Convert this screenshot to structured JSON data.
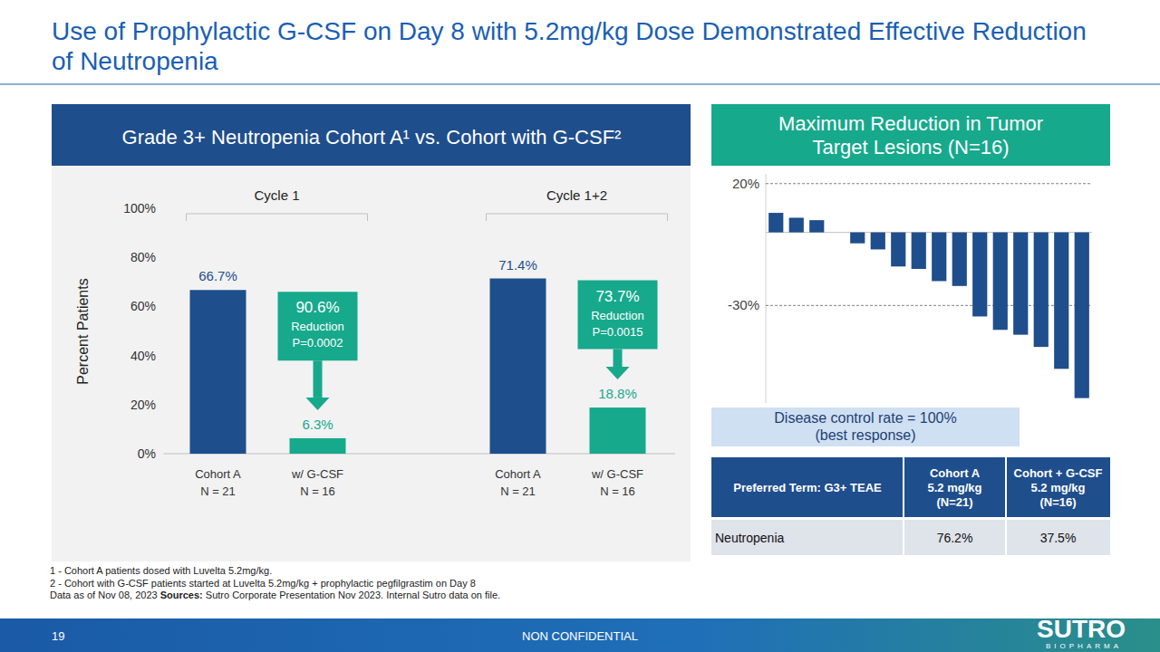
{
  "header": {
    "title": "Use of Prophylactic G-CSF on Day 8 with 5.2mg/kg Dose Demonstrated Effective Reduction of Neutropenia"
  },
  "chart_data": [
    {
      "type": "bar",
      "title": "Grade 3+ Neutropenia Cohort A¹ vs. Cohort with G-CSF²",
      "y_label": "Percent Patients",
      "groups": [
        "Cycle 1",
        "Cycle 1+2"
      ],
      "categories": [
        "Cohort A",
        "w/ G-CSF",
        "Cohort A",
        "w/ G-CSF"
      ],
      "category_notes": [
        "N = 21",
        "N = 16",
        "N = 21",
        "N = 16"
      ],
      "values": [
        66.7,
        6.3,
        71.4,
        18.8
      ],
      "value_labels": [
        "66.7%",
        "6.3%",
        "71.4%",
        "18.8%"
      ],
      "colors": [
        "#1f4e8c",
        "#17a98c",
        "#1f4e8c",
        "#17a98c"
      ],
      "data_labels": true,
      "grid": false,
      "ylim": [
        0,
        100
      ],
      "yticks": [
        {
          "value": 0,
          "label": "0%"
        },
        {
          "value": 20,
          "label": "20%"
        },
        {
          "value": 40,
          "label": "40%"
        },
        {
          "value": 60,
          "label": "60%"
        },
        {
          "value": 80,
          "label": "80%"
        },
        {
          "value": 100,
          "label": "100%"
        }
      ],
      "annotations": [
        {
          "label": "90.6%",
          "text": "Reduction",
          "p_value": "P=0.0002"
        },
        {
          "label": "73.7%",
          "text": "Reduction",
          "p_value": "P=0.0015"
        }
      ]
    },
    {
      "type": "bar",
      "title": "Maximum Reduction in Tumor Target Lesions (N=16)",
      "categories": [
        null,
        null,
        null,
        null,
        null,
        null,
        null,
        null,
        null,
        null,
        null,
        null,
        null,
        null,
        null,
        null
      ],
      "values": [
        8,
        6,
        5,
        0,
        -4.5,
        -7,
        -14,
        -15,
        -20,
        -22,
        -34.5,
        -40,
        -42,
        -47,
        -56,
        -68
      ],
      "color": "#1f4e8c",
      "ylim": [
        -70,
        24
      ],
      "yticks": [
        {
          "value": 20,
          "label": "20%"
        },
        {
          "value": -30,
          "label": "-30%"
        }
      ],
      "grid": true,
      "tick_labels": "y",
      "annotation": {
        "text": "Disease control rate = 100%",
        "note": "(best response)"
      }
    }
  ],
  "table": {
    "header": [
      [
        "Preferred Term: G3+ TEAE"
      ],
      [
        "Cohort A",
        "5.2 mg/kg",
        "(N=21)"
      ],
      [
        "Cohort + G-CSF",
        "5.2 mg/kg",
        "(N=16)"
      ]
    ],
    "rows": [
      [
        "Neutropenia",
        "76.2%",
        "37.5%"
      ]
    ]
  },
  "footnotes": {
    "notes": [
      "1 - Cohort A patients dosed with Luvelta 5.2mg/kg.",
      "2 - Cohort with G-CSF patients started at Luvelta 5.2mg/kg + prophylactic pegfilgrastim  on Day 8"
    ],
    "data_as_of": "Data as of Nov 08, 2023",
    "sources_label": "Sources:",
    "sources": "Sutro Corporate Presentation Nov 2023. Internal Sutro data on file."
  },
  "footer": {
    "page": "19",
    "classification": "NON CONFIDENTIAL",
    "logo": "SUTRO",
    "logo_sub": "BIOPHARMA"
  }
}
